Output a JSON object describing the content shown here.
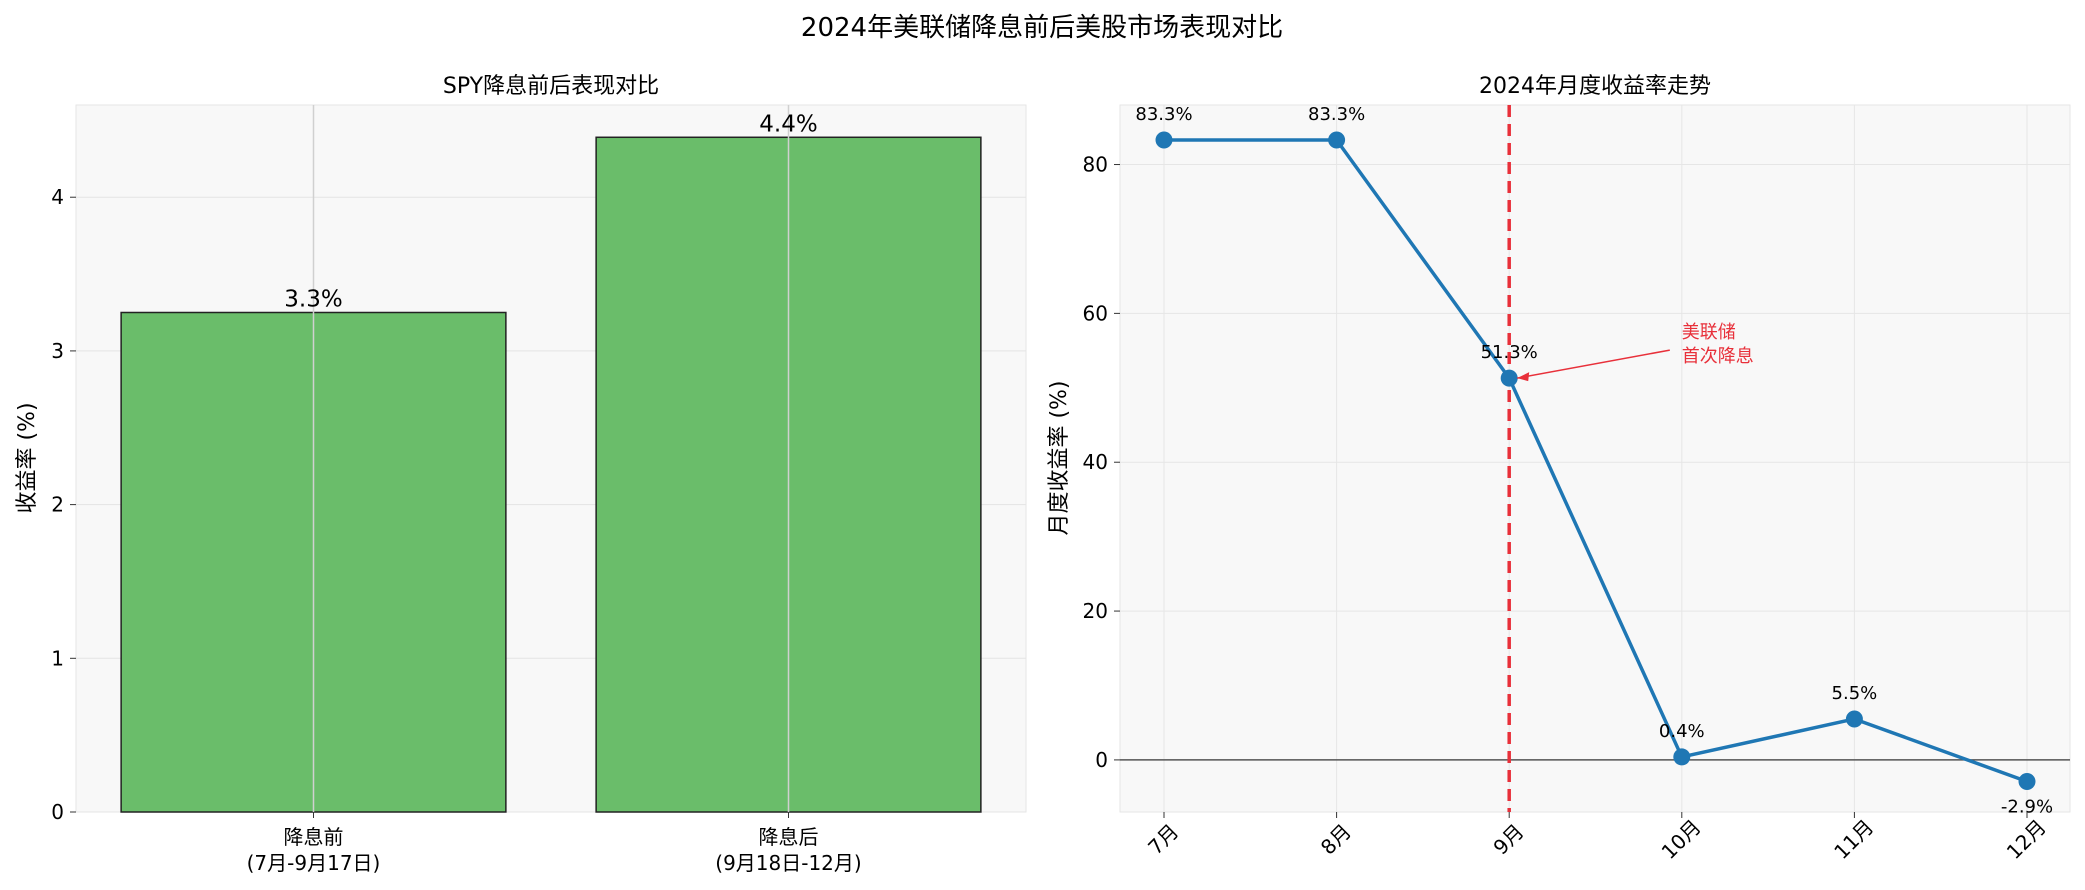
{
  "figure": {
    "title": "2024年美联储降息前后美股市场表现对比"
  },
  "chart_data": [
    {
      "type": "bar",
      "title": "SPY降息前后表现对比",
      "xlabel": "",
      "ylabel": "收益率 (%)",
      "categories": [
        "降息前\n(7月-9月17日)",
        "降息后\n(9月18日-12月)"
      ],
      "values": [
        3.25,
        4.39
      ],
      "data_labels": [
        "3.3%",
        "4.4%"
      ],
      "ylim": [
        0,
        4.6
      ],
      "yticks": [
        0,
        1,
        2,
        3,
        4
      ],
      "ytick_labels": [
        "0",
        "1",
        "2",
        "3",
        "4"
      ],
      "bar_color": "#6abd6a",
      "grid": true
    },
    {
      "type": "line",
      "title": "2024年月度收益率走势",
      "xlabel": "",
      "ylabel": "月度收益率 (%)",
      "categories": [
        "7月",
        "8月",
        "9月",
        "10月",
        "11月",
        "12月"
      ],
      "values": [
        83.3,
        83.3,
        51.3,
        0.4,
        5.5,
        -2.9
      ],
      "data_labels": [
        "83.3%",
        "83.3%",
        "51.3%",
        "0.4%",
        "5.5%",
        "-2.9%"
      ],
      "ylim": [
        -7,
        88
      ],
      "yticks": [
        0,
        20,
        40,
        60,
        80
      ],
      "ytick_labels": [
        "0",
        "20",
        "40",
        "60",
        "80"
      ],
      "line_color": "#1f77b4",
      "vline": {
        "category_index": 2,
        "color": "#e8303a"
      },
      "hline_value": 0,
      "annotation": {
        "lines": [
          "美联储",
          "首次降息"
        ],
        "color": "#e8303a",
        "target_index": 2
      },
      "grid": true
    }
  ]
}
